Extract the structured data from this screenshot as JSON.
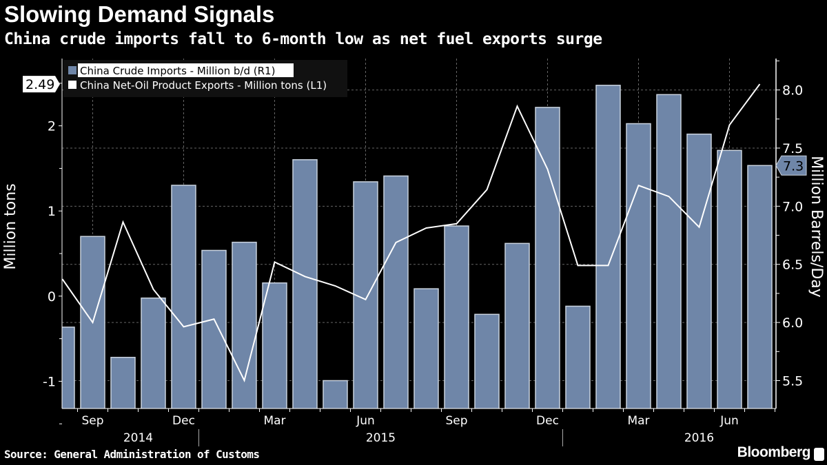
{
  "header": {
    "title": "Slowing Demand Signals",
    "subtitle": "China crude imports fall to 6-month low as net fuel exports surge"
  },
  "footer": {
    "source": "Source: General Administration of Customs",
    "brand": "Bloomberg"
  },
  "colors": {
    "bar": "#6f86a8",
    "bar_edge": "#c9d2de",
    "line": "#ffffff",
    "grid": "#666666",
    "background": "#000000"
  },
  "chart_data": {
    "type": "bar+line",
    "title": "Slowing Demand Signals",
    "months": [
      "Aug 2014",
      "Sep 2014",
      "Oct 2014",
      "Nov 2014",
      "Dec 2014",
      "Jan 2015",
      "Feb 2015",
      "Mar 2015",
      "Apr 2015",
      "May 2015",
      "Jun 2015",
      "Jul 2015",
      "Aug 2015",
      "Sep 2015",
      "Oct 2015",
      "Nov 2015",
      "Dec 2015",
      "Jan 2016",
      "Feb 2016",
      "Mar 2016",
      "Apr 2016",
      "May 2016",
      "Jun 2016",
      "Jul 2016"
    ],
    "x_tick_labels": [
      {
        "index": 1,
        "label": "Sep"
      },
      {
        "index": 4,
        "label": "Dec"
      },
      {
        "index": 7,
        "label": "Mar"
      },
      {
        "index": 10,
        "label": "Jun"
      },
      {
        "index": 13,
        "label": "Sep"
      },
      {
        "index": 16,
        "label": "Dec"
      },
      {
        "index": 19,
        "label": "Mar"
      },
      {
        "index": 22,
        "label": "Jun"
      }
    ],
    "year_labels": [
      {
        "index": 2.5,
        "label": "2014"
      },
      {
        "index": 10.5,
        "label": "2015"
      },
      {
        "index": 21,
        "label": "2016"
      }
    ],
    "year_separators": [
      4.5,
      16.5
    ],
    "series": [
      {
        "name": "China Crude Imports - Million b/d (R1)",
        "type": "bar",
        "axis": "right",
        "values": [
          5.96,
          6.74,
          5.7,
          6.21,
          7.18,
          6.62,
          6.69,
          6.34,
          7.4,
          5.5,
          7.21,
          7.26,
          6.29,
          6.83,
          6.07,
          6.68,
          7.85,
          6.14,
          8.04,
          7.71,
          7.96,
          7.62,
          7.48,
          7.35
        ],
        "last_label": "7.3"
      },
      {
        "name": "China Net-Oil Product Exports - Million tons (L1)",
        "type": "line",
        "axis": "left",
        "values": [
          0.2,
          -0.31,
          0.87,
          0.08,
          -0.36,
          -0.27,
          -0.99,
          0.4,
          0.23,
          0.12,
          -0.04,
          0.63,
          0.8,
          0.85,
          1.25,
          2.23,
          1.49,
          0.36,
          0.36,
          1.3,
          1.17,
          0.81,
          2.01,
          2.49
        ],
        "last_label": "2.49"
      }
    ],
    "left_axis": {
      "label": "Million tons",
      "range": [
        -1.32,
        2.79
      ],
      "ticks": [
        -1,
        0,
        1,
        2
      ],
      "tick_labels": [
        "-1",
        "0",
        "1",
        "2"
      ]
    },
    "right_axis": {
      "label": "Million Barrels/Day",
      "range": [
        5.26,
        8.27
      ],
      "ticks": [
        5.5,
        6.0,
        6.5,
        7.0,
        7.5,
        8.0
      ],
      "tick_labels": [
        "5.5",
        "6.0",
        "6.5",
        "7.0",
        "7.5",
        "8.0"
      ]
    },
    "grid": true,
    "legend_position": "top-left"
  }
}
